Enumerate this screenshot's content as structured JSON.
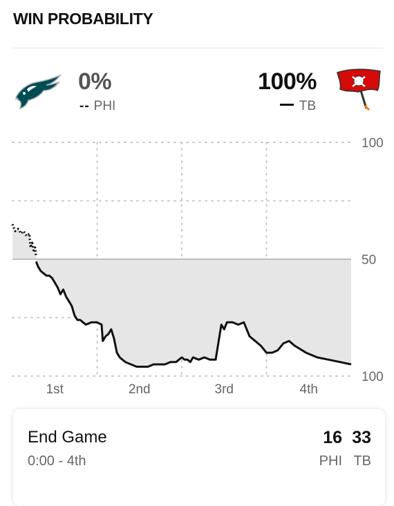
{
  "header": {
    "title": "WIN PROBABILITY"
  },
  "teams": {
    "away": {
      "abbr": "PHI",
      "pct": "0%",
      "line_style": "dotted",
      "logo_icon": "eagles-logo-icon",
      "color": "#004C54"
    },
    "home": {
      "abbr": "TB",
      "pct": "100%",
      "line_style": "solid",
      "logo_icon": "buccaneers-logo-icon",
      "color": "#D50A0A"
    }
  },
  "chart_data": {
    "type": "line",
    "y_tick_labels": [
      "100",
      "50",
      "100"
    ],
    "ylim": [
      0,
      100
    ],
    "x_tick_labels": [
      "1st",
      "2nd",
      "3rd",
      "4th"
    ],
    "xlim": [
      0,
      60
    ],
    "fill_baseline": 50,
    "grid": true,
    "colors": {
      "line": "#111111",
      "fill": "#e6e6e6",
      "grid": "#c8c8c8",
      "midline": "#bdbdbd"
    },
    "series": [
      {
        "name": "PHI",
        "style": "dotted",
        "x": [
          0,
          0.5,
          1,
          1.5,
          2,
          2.5,
          3,
          3.2,
          3.5,
          3.8,
          4,
          4.2
        ],
        "y": [
          65,
          62,
          63,
          61,
          62,
          60,
          61,
          55,
          57,
          53,
          55,
          51
        ]
      },
      {
        "name": "TB",
        "style": "solid",
        "x": [
          4.2,
          4.5,
          5,
          5.5,
          6,
          6.5,
          7,
          7.5,
          8,
          8.5,
          9,
          9.5,
          10,
          10.5,
          11,
          11.5,
          12,
          12.5,
          13,
          14,
          15,
          15.8,
          16,
          16.5,
          17,
          17.5,
          18,
          18.5,
          19,
          20,
          21,
          22,
          23,
          24,
          25,
          26,
          27,
          28,
          29,
          29.5,
          30,
          30.5,
          31,
          31.5,
          32,
          33,
          34,
          35,
          36,
          37,
          37.5,
          38,
          39,
          40,
          41,
          42,
          43,
          44,
          45,
          46,
          47,
          48,
          49,
          50,
          52,
          54,
          56,
          58,
          60
        ],
        "y": [
          49,
          47,
          45,
          44,
          43,
          43,
          42,
          40,
          38,
          35,
          37,
          34,
          32,
          30,
          26,
          24,
          24,
          23,
          22,
          23,
          23,
          22,
          15,
          17,
          18,
          20,
          16,
          10,
          8,
          6,
          5,
          4,
          4,
          4,
          5,
          5,
          5,
          6,
          6,
          7,
          8,
          7,
          7,
          6,
          8,
          7,
          8,
          7,
          7,
          22,
          20,
          23,
          23,
          22,
          23,
          17,
          15,
          13,
          10,
          10,
          11,
          14,
          15,
          13,
          10,
          8,
          7,
          6,
          5
        ]
      }
    ]
  },
  "summary": {
    "status": "End Game",
    "time": "0:00 - 4th",
    "away_score": "16",
    "home_score": "33",
    "away_abbr": "PHI",
    "home_abbr": "TB"
  }
}
